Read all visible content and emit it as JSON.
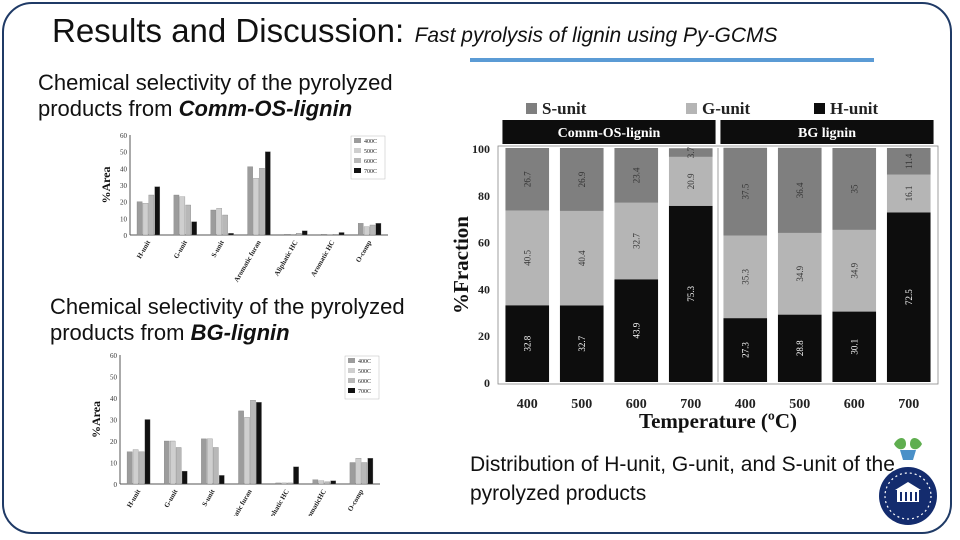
{
  "slide": {
    "title": "Results and Discussion:",
    "subtitle": "Fast pyrolysis of lignin using Py-GCMS",
    "caption1_prefix": "Chemical selectivity of the pyrolyzed products from",
    "caption1_emph": "Comm-OS-lignin",
    "caption2_prefix": "Chemical selectivity of the pyrolyzed products from",
    "caption2_emph": "BG-lignin",
    "distribution_caption": "Distribution of H-unit, G-unit, and S-unit of the pyrolyzed products"
  },
  "chart_data": [
    {
      "type": "bar",
      "ylabel": "%Area",
      "ylim": [
        0,
        60
      ],
      "yticks": [
        0,
        10,
        20,
        30,
        40,
        50,
        60
      ],
      "categories": [
        "H-unit",
        "G-unit",
        "S-unit",
        "Aromatic furan",
        "Aliphatic HC",
        "Aromatic HC",
        "O-comp"
      ],
      "series": [
        {
          "name": "400C",
          "color": "#9c9c9c",
          "values": [
            20,
            24,
            15,
            41,
            0.5,
            0.5,
            7
          ]
        },
        {
          "name": "500C",
          "color": "#cfcfcf",
          "values": [
            19,
            23,
            16,
            34,
            0.5,
            0.3,
            5
          ]
        },
        {
          "name": "600C",
          "color": "#b8b8b8",
          "values": [
            24,
            18,
            12,
            40,
            1,
            0.5,
            6
          ]
        },
        {
          "name": "700C",
          "color": "#111111",
          "values": [
            29,
            8,
            1,
            50,
            2.5,
            1.5,
            7
          ]
        }
      ],
      "legend": "top-right"
    },
    {
      "type": "bar",
      "ylabel": "%Area",
      "ylim": [
        0,
        60
      ],
      "yticks": [
        0,
        10,
        20,
        30,
        40,
        50,
        60
      ],
      "categories": [
        "H-unit",
        "G-unit",
        "S-unit",
        "Aromatic furan",
        "Aliphatic HC",
        "AromaticHC",
        "O-comp"
      ],
      "series": [
        {
          "name": "400C",
          "color": "#9c9c9c",
          "values": [
            15,
            20,
            21,
            34,
            0.5,
            2,
            10
          ]
        },
        {
          "name": "500C",
          "color": "#cfcfcf",
          "values": [
            16,
            20,
            21,
            31,
            0.5,
            1.5,
            12
          ]
        },
        {
          "name": "600C",
          "color": "#b8b8b8",
          "values": [
            15,
            17,
            17,
            39,
            0.5,
            1,
            10
          ]
        },
        {
          "name": "700C",
          "color": "#111111",
          "values": [
            30,
            6,
            4,
            38,
            8,
            1.5,
            12
          ]
        }
      ],
      "legend": "top-right"
    },
    {
      "type": "bar",
      "stacked": true,
      "ylabel": "%Fraction",
      "xlabel": "Temperature (ºC)",
      "ylim": [
        0,
        100
      ],
      "yticks": [
        0,
        20,
        40,
        60,
        80,
        100
      ],
      "categories": [
        "400",
        "500",
        "600",
        "700",
        "400",
        "500",
        "600",
        "700"
      ],
      "groups": [
        {
          "name": "Comm-OS-lignin",
          "indices": [
            0,
            1,
            2,
            3
          ]
        },
        {
          "name": "BG lignin",
          "indices": [
            4,
            5,
            6,
            7
          ]
        }
      ],
      "series": [
        {
          "name": "H-unit",
          "color": "#0d0d0d",
          "label_color": "#ffffff",
          "values": [
            32.8,
            32.7,
            43.9,
            75.3,
            27.3,
            28.8,
            30.1,
            72.5
          ]
        },
        {
          "name": "G-unit",
          "color": "#b5b5b5",
          "label_color": "#333333",
          "values": [
            40.5,
            40.4,
            32.7,
            20.9,
            35.3,
            34.9,
            34.9,
            16.1
          ]
        },
        {
          "name": "S-unit",
          "color": "#7f7f7f",
          "label_color": "#333333",
          "values": [
            26.7,
            26.9,
            23.4,
            3.7,
            37.5,
            36.4,
            35.0,
            11.4
          ]
        }
      ],
      "legend": "top"
    }
  ]
}
